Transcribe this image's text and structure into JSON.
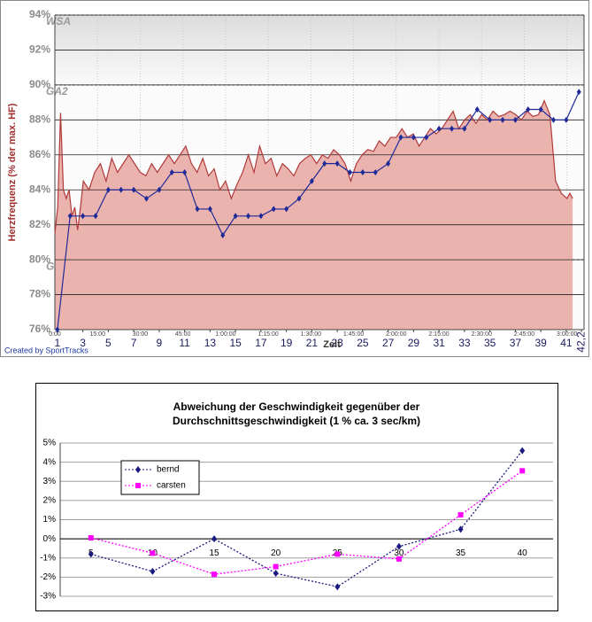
{
  "chart_data": [
    {
      "type": "line",
      "y_label": "Herzfrequenz (% der max. HF)",
      "x_label": "Zeit",
      "credit": "Created by SportTracks",
      "ylim": [
        76,
        94
      ],
      "yticks": [
        {
          "value": 76,
          "label": "76%"
        },
        {
          "value": 78,
          "label": "78%"
        },
        {
          "value": 80,
          "label": "80%"
        },
        {
          "value": 82,
          "label": "82%"
        },
        {
          "value": 84,
          "label": "84%"
        },
        {
          "value": 86,
          "label": "86%"
        },
        {
          "value": 88,
          "label": "88%"
        },
        {
          "value": 90,
          "label": "90%"
        },
        {
          "value": 92,
          "label": "92%"
        },
        {
          "value": 94,
          "label": "94%"
        }
      ],
      "grid": true,
      "zones": [
        {
          "label": "WSA",
          "value": 94
        },
        {
          "label": "GA2",
          "value": 90
        },
        {
          "label": "GA1/2",
          "value": 80
        }
      ],
      "xlim": [
        0.8,
        42.4
      ],
      "xticks": [
        1,
        3,
        5,
        7,
        9,
        11,
        13,
        15,
        17,
        19,
        21,
        23,
        25,
        27,
        29,
        31,
        33,
        35,
        37,
        39,
        41,
        {
          "value": 42.2,
          "label": "42,2"
        }
      ],
      "x2lim": [
        0,
        186
      ],
      "x2ticks": [
        {
          "value": 0,
          "label": "0:00"
        },
        {
          "value": 15,
          "label": "15:00"
        },
        {
          "value": 30,
          "label": "30:00"
        },
        {
          "value": 45,
          "label": "45:00"
        },
        {
          "value": 60,
          "label": "1:00:00"
        },
        {
          "value": 75,
          "label": "1:15:00"
        },
        {
          "value": 90,
          "label": "1:30:00"
        },
        {
          "value": 105,
          "label": "1:45:00"
        },
        {
          "value": 120,
          "label": "2:00:00"
        },
        {
          "value": 135,
          "label": "2:15:00"
        },
        {
          "value": 150,
          "label": "2:30:00"
        },
        {
          "value": 165,
          "label": "2:45:00"
        },
        {
          "value": 180,
          "label": "3:00:00"
        }
      ],
      "series": [
        {
          "color": "#b03a3a",
          "fill": "#ebb3ae",
          "x_axis": "x2",
          "x": [
            0,
            1,
            2,
            3,
            4,
            5,
            6,
            7,
            8,
            9,
            10,
            12,
            14,
            16,
            18,
            20,
            22,
            24,
            26,
            28,
            30,
            32,
            34,
            36,
            38,
            40,
            42,
            44,
            46,
            48,
            50,
            52,
            54,
            56,
            58,
            60,
            62,
            64,
            66,
            68,
            70,
            72,
            74,
            76,
            78,
            80,
            82,
            84,
            86,
            88,
            90,
            92,
            94,
            96,
            98,
            100,
            102,
            104,
            106,
            108,
            110,
            112,
            114,
            116,
            118,
            120,
            122,
            124,
            126,
            128,
            130,
            132,
            134,
            136,
            138,
            140,
            142,
            144,
            146,
            148,
            150,
            152,
            154,
            156,
            158,
            160,
            162,
            164,
            166,
            168,
            170,
            172,
            174,
            176,
            178,
            180,
            181,
            182
          ],
          "values": [
            81.5,
            83,
            88.4,
            84,
            83.5,
            84,
            82.5,
            83,
            81.7,
            83,
            84.5,
            84,
            85,
            85.5,
            84.5,
            85.8,
            85,
            85.5,
            86,
            85.5,
            85,
            84.8,
            85.5,
            85,
            85.5,
            86,
            85.5,
            86,
            86.5,
            85.5,
            85,
            85.8,
            84.8,
            85.2,
            84,
            84.5,
            83.5,
            84.3,
            85,
            86,
            85,
            86.5,
            85.5,
            85.8,
            84.8,
            85.5,
            85.2,
            84.8,
            85.5,
            85.8,
            86,
            85.5,
            86,
            85.8,
            86.3,
            86,
            85.5,
            84.5,
            85.5,
            86,
            86.3,
            86.2,
            86.8,
            86.5,
            87,
            87,
            87.5,
            87,
            87.2,
            86.5,
            87,
            87.5,
            87.2,
            87.5,
            88,
            88.5,
            87.5,
            88,
            88.3,
            87.8,
            88.3,
            88,
            88.5,
            88.2,
            88.3,
            88.5,
            88.3,
            88,
            88.5,
            88.2,
            88.3,
            89.1,
            88.3,
            84.5,
            83.8,
            83.5,
            83.8,
            83.5
          ]
        },
        {
          "color": "#1f2a99",
          "marker": "diamond",
          "x": [
            1,
            2,
            3,
            4,
            5,
            6,
            7,
            8,
            9,
            10,
            11,
            12,
            13,
            14,
            15,
            16,
            17,
            18,
            19,
            20,
            21,
            22,
            23,
            24,
            25,
            26,
            27,
            28,
            29,
            30,
            31,
            32,
            33,
            34,
            35,
            36,
            37,
            38,
            39,
            40,
            41,
            42
          ],
          "values": [
            76,
            82.5,
            82.5,
            82.5,
            84,
            84,
            84,
            83.5,
            84,
            85,
            85,
            82.9,
            82.9,
            81.4,
            82.5,
            82.5,
            82.5,
            82.9,
            82.9,
            83.5,
            84.5,
            85.5,
            85.5,
            85,
            85,
            85,
            85.5,
            87,
            87,
            87,
            87.5,
            87.5,
            87.5,
            88.6,
            88,
            88,
            88,
            88.6,
            88.6,
            88,
            88,
            89.6
          ]
        }
      ]
    },
    {
      "type": "line",
      "title": [
        "Abweichung der Geschwindigkeit gegenüber der",
        "Durchschnittsgeschwindigkeit (1 % ca. 3 sec/km)"
      ],
      "categories": [
        5,
        10,
        15,
        20,
        25,
        30,
        35,
        40
      ],
      "ylim": [
        -3,
        5
      ],
      "yticks": [
        {
          "value": -3,
          "label": "-3%"
        },
        {
          "value": -2,
          "label": "-2%"
        },
        {
          "value": -1,
          "label": "-1%"
        },
        {
          "value": 0,
          "label": "0%"
        },
        {
          "value": 1,
          "label": "1%"
        },
        {
          "value": 2,
          "label": "2%"
        },
        {
          "value": 3,
          "label": "3%"
        },
        {
          "value": 4,
          "label": "4%"
        },
        {
          "value": 5,
          "label": "5%"
        }
      ],
      "grid": true,
      "legend": "upper left",
      "series": [
        {
          "name": "bernd",
          "color": "#1a1a80",
          "marker": "diamond",
          "line_style": "dotted",
          "values": [
            -0.8,
            -1.7,
            0,
            -1.8,
            -2.5,
            -0.4,
            0.5,
            4.6
          ]
        },
        {
          "name": "carsten",
          "color": "#ff00ff",
          "marker": "square",
          "line_style": "dotted",
          "values": [
            0.05,
            -0.75,
            -1.85,
            -1.45,
            -0.8,
            -1.05,
            1.25,
            3.55
          ]
        }
      ]
    }
  ]
}
